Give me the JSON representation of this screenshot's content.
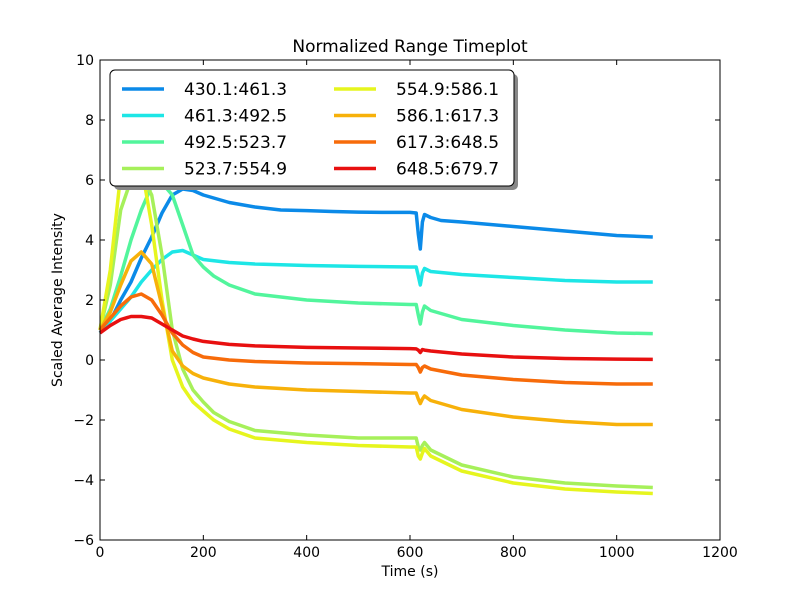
{
  "chart_data": {
    "type": "line",
    "title": "Normalized Range Timeplot",
    "xlabel": "Time (s)",
    "ylabel": "Scaled Average Intensity",
    "xlim": [
      0,
      1200
    ],
    "ylim": [
      -6,
      10
    ],
    "xticks": [
      0,
      200,
      400,
      600,
      800,
      1000,
      1200
    ],
    "yticks": [
      -6,
      -4,
      -2,
      0,
      2,
      4,
      6,
      8,
      10
    ],
    "grid": false,
    "legend_position": "upper-left",
    "legend_columns": 2,
    "series": [
      {
        "name": "430.1:461.3",
        "color": "#0b8ae8",
        "x": [
          0,
          20,
          40,
          60,
          80,
          100,
          120,
          140,
          160,
          180,
          200,
          250,
          300,
          350,
          400,
          450,
          500,
          550,
          600,
          612,
          616,
          620,
          624,
          628,
          640,
          660,
          700,
          800,
          900,
          1000,
          1070
        ],
        "y": [
          0.9,
          1.3,
          2.0,
          2.6,
          3.4,
          4.1,
          4.9,
          5.5,
          5.7,
          5.65,
          5.5,
          5.25,
          5.1,
          5.0,
          4.98,
          4.95,
          4.93,
          4.92,
          4.92,
          4.9,
          4.2,
          3.7,
          4.6,
          4.85,
          4.75,
          4.65,
          4.6,
          4.45,
          4.3,
          4.15,
          4.1
        ]
      },
      {
        "name": "461.3:492.5",
        "color": "#1de6e6",
        "x": [
          0,
          20,
          40,
          60,
          80,
          100,
          120,
          140,
          160,
          180,
          200,
          250,
          300,
          400,
          500,
          600,
          612,
          616,
          620,
          624,
          628,
          640,
          700,
          800,
          900,
          1000,
          1070
        ],
        "y": [
          0.9,
          1.3,
          1.7,
          2.1,
          2.6,
          3.0,
          3.35,
          3.6,
          3.65,
          3.5,
          3.35,
          3.25,
          3.2,
          3.15,
          3.12,
          3.1,
          3.1,
          2.8,
          2.5,
          2.9,
          3.05,
          2.95,
          2.85,
          2.75,
          2.65,
          2.6,
          2.6
        ]
      },
      {
        "name": "492.5:523.7",
        "color": "#52f59c",
        "x": [
          0,
          20,
          40,
          60,
          80,
          100,
          120,
          140,
          160,
          180,
          200,
          220,
          250,
          300,
          400,
          500,
          600,
          612,
          616,
          620,
          624,
          628,
          640,
          700,
          800,
          900,
          1000,
          1070
        ],
        "y": [
          1.0,
          1.7,
          2.8,
          4.0,
          5.0,
          5.8,
          5.9,
          5.5,
          4.5,
          3.5,
          3.1,
          2.8,
          2.5,
          2.2,
          2.0,
          1.9,
          1.85,
          1.85,
          1.5,
          1.2,
          1.6,
          1.8,
          1.65,
          1.35,
          1.15,
          1.0,
          0.9,
          0.88
        ]
      },
      {
        "name": "523.7:554.9",
        "color": "#a6f05a",
        "x": [
          0,
          20,
          40,
          60,
          80,
          100,
          120,
          140,
          160,
          180,
          200,
          220,
          250,
          300,
          400,
          500,
          600,
          612,
          616,
          620,
          624,
          628,
          640,
          700,
          800,
          900,
          1000,
          1070
        ],
        "y": [
          1.0,
          2.5,
          5.0,
          6.0,
          6.2,
          5.5,
          3.5,
          1.0,
          -0.3,
          -1.0,
          -1.4,
          -1.75,
          -2.05,
          -2.35,
          -2.5,
          -2.6,
          -2.6,
          -2.6,
          -2.9,
          -3.0,
          -2.85,
          -2.75,
          -3.0,
          -3.5,
          -3.9,
          -4.1,
          -4.2,
          -4.25
        ]
      },
      {
        "name": "554.9:586.1",
        "color": "#e6f51e",
        "x": [
          0,
          20,
          40,
          60,
          80,
          100,
          120,
          140,
          160,
          180,
          200,
          220,
          250,
          300,
          400,
          500,
          600,
          612,
          616,
          620,
          624,
          628,
          640,
          700,
          800,
          900,
          1000,
          1070
        ],
        "y": [
          1.0,
          3.0,
          6.2,
          7.0,
          6.5,
          4.5,
          2.0,
          0.0,
          -0.9,
          -1.4,
          -1.7,
          -2.0,
          -2.3,
          -2.6,
          -2.75,
          -2.85,
          -2.9,
          -2.9,
          -3.2,
          -3.3,
          -3.1,
          -2.95,
          -3.2,
          -3.7,
          -4.1,
          -4.3,
          -4.4,
          -4.45
        ]
      },
      {
        "name": "586.1:617.3",
        "color": "#f7b10a",
        "x": [
          0,
          20,
          40,
          60,
          80,
          100,
          120,
          140,
          160,
          180,
          200,
          250,
          300,
          400,
          500,
          600,
          612,
          616,
          620,
          624,
          628,
          640,
          700,
          800,
          900,
          1000,
          1070
        ],
        "y": [
          1.0,
          1.6,
          2.5,
          3.3,
          3.6,
          3.2,
          1.8,
          0.3,
          -0.2,
          -0.45,
          -0.6,
          -0.8,
          -0.9,
          -1.0,
          -1.05,
          -1.1,
          -1.1,
          -1.3,
          -1.45,
          -1.3,
          -1.2,
          -1.35,
          -1.65,
          -1.9,
          -2.05,
          -2.15,
          -2.15
        ]
      },
      {
        "name": "617.3:648.5",
        "color": "#f76b0a",
        "x": [
          0,
          20,
          40,
          60,
          80,
          100,
          120,
          140,
          160,
          180,
          200,
          250,
          300,
          400,
          500,
          600,
          612,
          616,
          620,
          624,
          628,
          640,
          700,
          800,
          900,
          1000,
          1070
        ],
        "y": [
          1.0,
          1.4,
          1.8,
          2.1,
          2.2,
          2.0,
          1.5,
          0.9,
          0.5,
          0.25,
          0.1,
          0.0,
          -0.05,
          -0.1,
          -0.12,
          -0.15,
          -0.15,
          -0.25,
          -0.4,
          -0.25,
          -0.2,
          -0.3,
          -0.5,
          -0.65,
          -0.75,
          -0.8,
          -0.8
        ]
      },
      {
        "name": "648.5:679.7",
        "color": "#e81010",
        "x": [
          0,
          20,
          40,
          60,
          80,
          100,
          120,
          140,
          160,
          180,
          200,
          250,
          300,
          400,
          500,
          600,
          612,
          616,
          620,
          624,
          628,
          640,
          700,
          800,
          900,
          1000,
          1070
        ],
        "y": [
          0.9,
          1.15,
          1.35,
          1.45,
          1.45,
          1.4,
          1.2,
          1.0,
          0.8,
          0.7,
          0.62,
          0.52,
          0.47,
          0.42,
          0.4,
          0.38,
          0.37,
          0.33,
          0.25,
          0.35,
          0.33,
          0.3,
          0.2,
          0.1,
          0.05,
          0.03,
          0.02
        ]
      }
    ]
  }
}
